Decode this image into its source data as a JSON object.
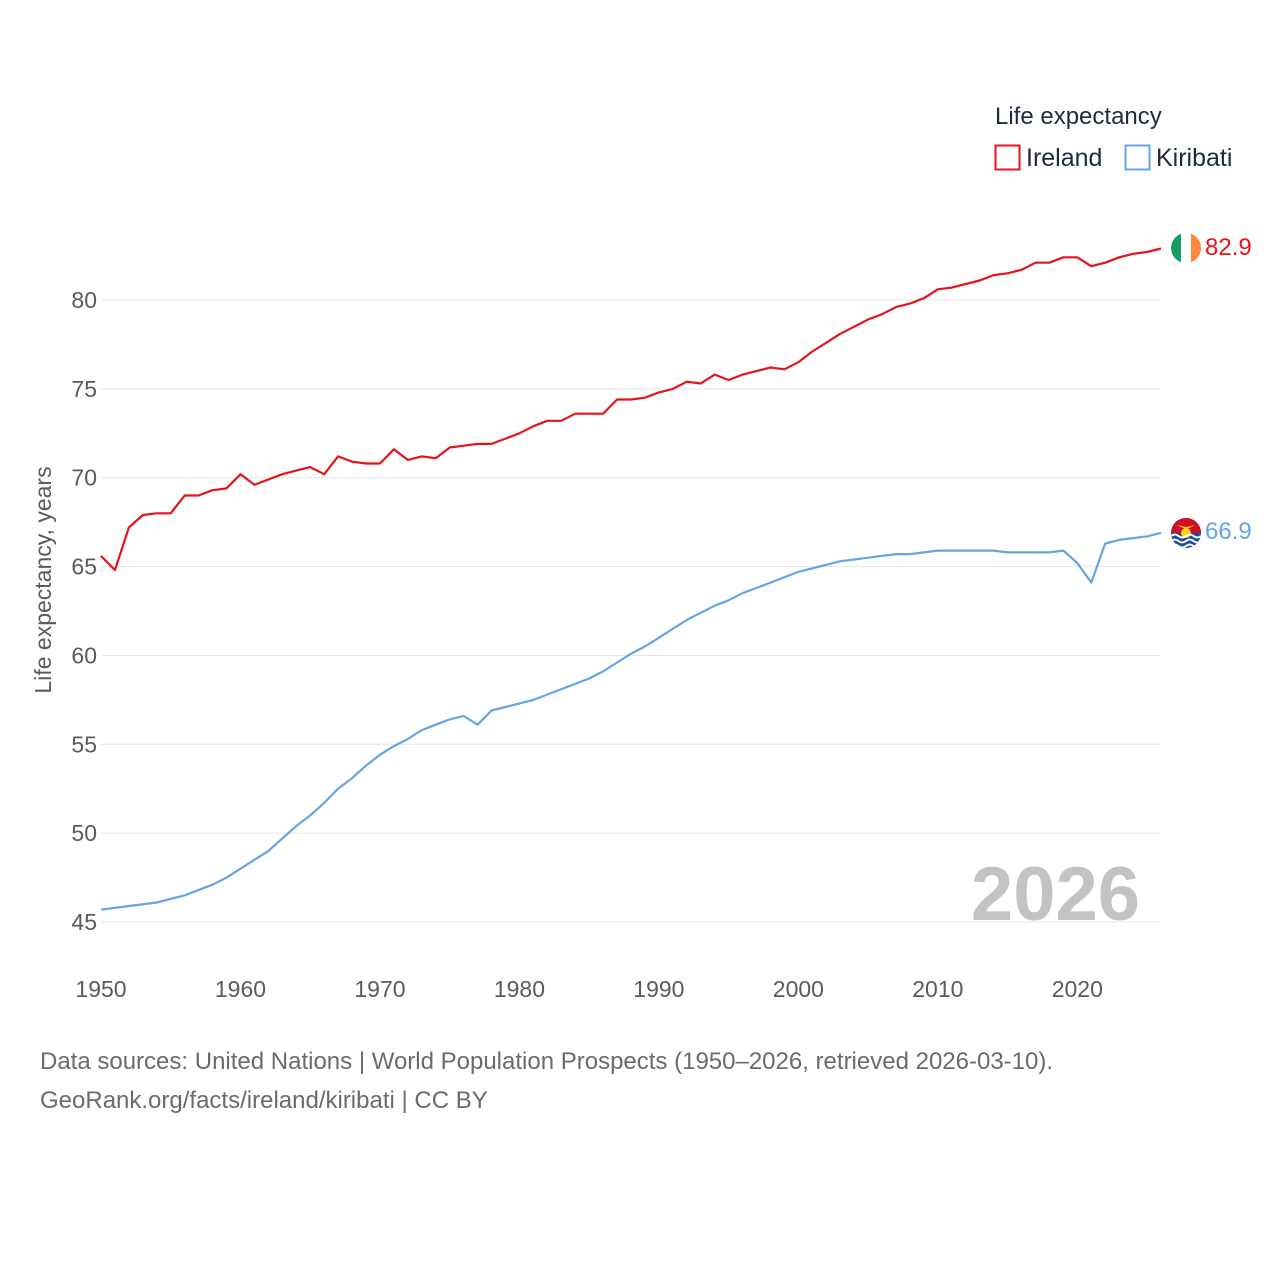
{
  "chart_data": {
    "type": "line",
    "title": "Life expectancy",
    "ylabel": "Life expectancy, years",
    "xlabel": "",
    "xlim": [
      1950,
      2026
    ],
    "ylim": [
      45,
      83
    ],
    "yticks": [
      45,
      50,
      55,
      60,
      65,
      70,
      75,
      80
    ],
    "xticks": [
      1950,
      1960,
      1970,
      1980,
      1990,
      2000,
      2010,
      2020
    ],
    "grid": true,
    "legend_position": "top-right",
    "current_year": "2026",
    "series": [
      {
        "name": "Ireland",
        "color": "#e3141c",
        "end_value": "82.9",
        "points": [
          [
            1950,
            65.6
          ],
          [
            1951,
            64.8
          ],
          [
            1952,
            67.2
          ],
          [
            1953,
            67.9
          ],
          [
            1954,
            68
          ],
          [
            1955,
            68
          ],
          [
            1956,
            69
          ],
          [
            1957,
            69
          ],
          [
            1958,
            69.3
          ],
          [
            1959,
            69.4
          ],
          [
            1960,
            70.2
          ],
          [
            1961,
            69.6
          ],
          [
            1962,
            69.9
          ],
          [
            1963,
            70.2
          ],
          [
            1964,
            70.4
          ],
          [
            1965,
            70.6
          ],
          [
            1966,
            70.2
          ],
          [
            1967,
            71.2
          ],
          [
            1968,
            70.9
          ],
          [
            1969,
            70.8
          ],
          [
            1970,
            70.8
          ],
          [
            1971,
            71.6
          ],
          [
            1972,
            71
          ],
          [
            1973,
            71.2
          ],
          [
            1974,
            71.1
          ],
          [
            1975,
            71.7
          ],
          [
            1976,
            71.8
          ],
          [
            1977,
            71.9
          ],
          [
            1978,
            71.9
          ],
          [
            1979,
            72.2
          ],
          [
            1980,
            72.5
          ],
          [
            1981,
            72.9
          ],
          [
            1982,
            73.2
          ],
          [
            1983,
            73.2
          ],
          [
            1984,
            73.6
          ],
          [
            1985,
            73.6
          ],
          [
            1986,
            73.6
          ],
          [
            1987,
            74.4
          ],
          [
            1988,
            74.4
          ],
          [
            1989,
            74.5
          ],
          [
            1990,
            74.8
          ],
          [
            1991,
            75
          ],
          [
            1992,
            75.4
          ],
          [
            1993,
            75.3
          ],
          [
            1994,
            75.8
          ],
          [
            1995,
            75.5
          ],
          [
            1996,
            75.8
          ],
          [
            1997,
            76
          ],
          [
            1998,
            76.2
          ],
          [
            1999,
            76.1
          ],
          [
            2000,
            76.5
          ],
          [
            2001,
            77.1
          ],
          [
            2002,
            77.6
          ],
          [
            2003,
            78.1
          ],
          [
            2004,
            78.5
          ],
          [
            2005,
            78.9
          ],
          [
            2006,
            79.2
          ],
          [
            2007,
            79.6
          ],
          [
            2008,
            79.8
          ],
          [
            2009,
            80.1
          ],
          [
            2010,
            80.6
          ],
          [
            2011,
            80.7
          ],
          [
            2012,
            80.9
          ],
          [
            2013,
            81.1
          ],
          [
            2014,
            81.4
          ],
          [
            2015,
            81.5
          ],
          [
            2016,
            81.7
          ],
          [
            2017,
            82.1
          ],
          [
            2018,
            82.1
          ],
          [
            2019,
            82.4
          ],
          [
            2020,
            82.4
          ],
          [
            2021,
            81.9
          ],
          [
            2022,
            82.1
          ],
          [
            2023,
            82.4
          ],
          [
            2024,
            82.6
          ],
          [
            2025,
            82.7
          ],
          [
            2026,
            82.9
          ]
        ]
      },
      {
        "name": "Kiribati",
        "color": "#65a5e3",
        "end_value": "66.9",
        "points": [
          [
            1950,
            45.7
          ],
          [
            1952,
            45.9
          ],
          [
            1954,
            46.1
          ],
          [
            1956,
            46.5
          ],
          [
            1958,
            47.1
          ],
          [
            1959,
            47.5
          ],
          [
            1960,
            48
          ],
          [
            1961,
            48.5
          ],
          [
            1962,
            49
          ],
          [
            1963,
            49.7
          ],
          [
            1964,
            50.4
          ],
          [
            1965,
            51
          ],
          [
            1966,
            51.7
          ],
          [
            1967,
            52.5
          ],
          [
            1968,
            53.1
          ],
          [
            1969,
            53.8
          ],
          [
            1970,
            54.4
          ],
          [
            1971,
            54.9
          ],
          [
            1972,
            55.3
          ],
          [
            1973,
            55.8
          ],
          [
            1974,
            56.1
          ],
          [
            1975,
            56.4
          ],
          [
            1976,
            56.6
          ],
          [
            1977,
            56.1
          ],
          [
            1978,
            56.9
          ],
          [
            1979,
            57.1
          ],
          [
            1980,
            57.3
          ],
          [
            1981,
            57.5
          ],
          [
            1982,
            57.8
          ],
          [
            1983,
            58.1
          ],
          [
            1984,
            58.4
          ],
          [
            1985,
            58.7
          ],
          [
            1986,
            59.1
          ],
          [
            1987,
            59.6
          ],
          [
            1988,
            60.1
          ],
          [
            1989,
            60.5
          ],
          [
            1990,
            61
          ],
          [
            1991,
            61.5
          ],
          [
            1992,
            62
          ],
          [
            1993,
            62.4
          ],
          [
            1994,
            62.8
          ],
          [
            1995,
            63.1
          ],
          [
            1996,
            63.5
          ],
          [
            1997,
            63.8
          ],
          [
            1998,
            64.1
          ],
          [
            1999,
            64.4
          ],
          [
            2000,
            64.7
          ],
          [
            2001,
            64.9
          ],
          [
            2002,
            65.1
          ],
          [
            2003,
            65.3
          ],
          [
            2004,
            65.4
          ],
          [
            2005,
            65.5
          ],
          [
            2006,
            65.6
          ],
          [
            2007,
            65.7
          ],
          [
            2008,
            65.7
          ],
          [
            2009,
            65.8
          ],
          [
            2010,
            65.9
          ],
          [
            2011,
            65.9
          ],
          [
            2012,
            65.9
          ],
          [
            2013,
            65.9
          ],
          [
            2014,
            65.9
          ],
          [
            2015,
            65.8
          ],
          [
            2016,
            65.8
          ],
          [
            2017,
            65.8
          ],
          [
            2018,
            65.8
          ],
          [
            2019,
            65.9
          ],
          [
            2020,
            65.2
          ],
          [
            2021,
            64.1
          ],
          [
            2022,
            66.3
          ],
          [
            2023,
            66.5
          ],
          [
            2024,
            66.6
          ],
          [
            2025,
            66.7
          ],
          [
            2026,
            66.9
          ]
        ]
      }
    ]
  },
  "footer": {
    "sources": "Data sources: United Nations | World Population Prospects (1950–2026, retrieved 2026-03-10).",
    "credit": "GeoRank.org/facts/ireland/kiribati | CC BY"
  }
}
